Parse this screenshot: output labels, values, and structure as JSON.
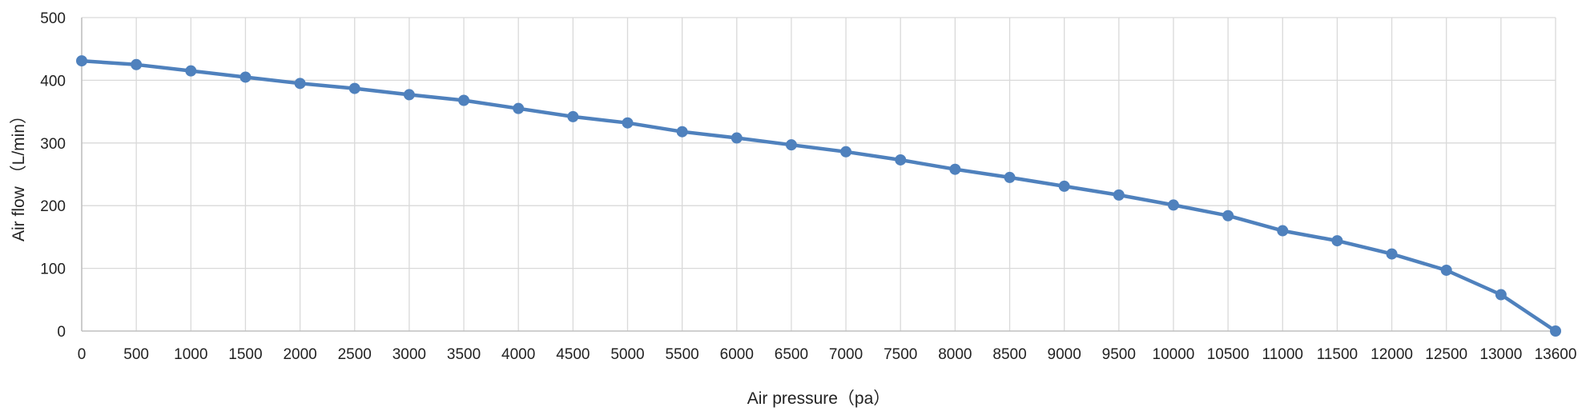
{
  "chart_data": {
    "type": "line",
    "title": "",
    "xlabel": "Air pressure（pa）",
    "ylabel": "Air flow （L/min）",
    "categories": [
      "0",
      "500",
      "1000",
      "1500",
      "2000",
      "2500",
      "3000",
      "3500",
      "4000",
      "4500",
      "5000",
      "5500",
      "6000",
      "6500",
      "7000",
      "7500",
      "8000",
      "8500",
      "9000",
      "9500",
      "10000",
      "10500",
      "11000",
      "11500",
      "12000",
      "12500",
      "13000",
      "13600"
    ],
    "series": [
      {
        "values": [
          431,
          425,
          415,
          405,
          395,
          387,
          377,
          368,
          355,
          342,
          332,
          318,
          308,
          297,
          286,
          273,
          258,
          245,
          231,
          217,
          201,
          184,
          160,
          144,
          123,
          97,
          58,
          0
        ],
        "color": "#4f81bd"
      }
    ],
    "ylim": [
      0,
      500
    ],
    "yticks": [
      0,
      100,
      200,
      300,
      400,
      500
    ],
    "grid": true,
    "legend": "none"
  }
}
